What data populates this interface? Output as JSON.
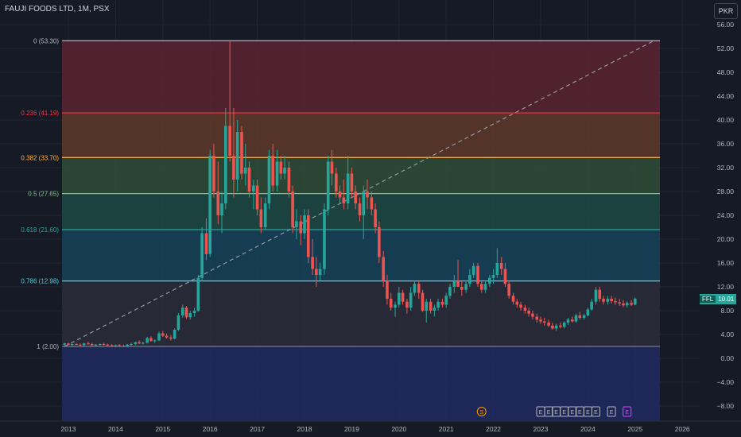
{
  "header": {
    "title": "FAUJI FOODS LTD, 1M, PSX"
  },
  "currency_button": "PKR",
  "price_tag": {
    "symbol": "FFL",
    "value": "10.01",
    "color": "#26a69a"
  },
  "colors": {
    "background": "#161a25",
    "up": "#26a69a",
    "down": "#ef5350",
    "grid": "#232632",
    "axis_text": "#b2b5be"
  },
  "chart_data": {
    "type": "candlestick",
    "title": "FAUJI FOODS LTD, 1M, PSX",
    "x_ticks": [
      "2013",
      "2014",
      "2015",
      "2016",
      "2017",
      "2018",
      "2019",
      "2020",
      "2021",
      "2022",
      "2023",
      "2024",
      "2025",
      "2026"
    ],
    "x_range": [
      2012.85,
      2026.4
    ],
    "y_ticks": [
      "56.00",
      "52.00",
      "48.00",
      "44.00",
      "40.00",
      "36.00",
      "32.00",
      "28.00",
      "24.00",
      "20.00",
      "16.00",
      "12.00",
      "8.00",
      "4.00",
      "0.00",
      "−4.00",
      "−8.00"
    ],
    "ylim": [
      -10.5,
      56.5
    ],
    "fib_levels": [
      {
        "label": "0 (53.30)",
        "value": 53.3,
        "line": "#b2b5be",
        "fill": "#5b2532",
        "text": "#b2b5be"
      },
      {
        "label": "0.236 (41.19)",
        "value": 41.19,
        "line": "#f23645",
        "fill": "#5f3a2a",
        "text": "#f23645"
      },
      {
        "label": "0.382 (33.70)",
        "value": 33.7,
        "line": "#ffb74d",
        "fill": "#2f4d38",
        "text": "#ffb74d"
      },
      {
        "label": "0.5 (27.65)",
        "value": 27.65,
        "line": "#81c784",
        "fill": "#1d4a45",
        "text": "#81c784"
      },
      {
        "label": "0.618 (21.60)",
        "value": 21.6,
        "line": "#26a69a",
        "fill": "#16435a",
        "text": "#26a69a"
      },
      {
        "label": "0.786 (12.98)",
        "value": 12.98,
        "line": "#4dd0e1",
        "fill": "#2a2e3a",
        "text": "#4dd0e1"
      },
      {
        "label": "1 (2.00)",
        "value": 2.0,
        "line": "#787b86",
        "fill": "#1e2b63",
        "text": "#b2b5be"
      }
    ],
    "trend_line": {
      "from": [
        2012.92,
        2.0
      ],
      "to": [
        2025.4,
        53.3
      ]
    },
    "candles": [
      [
        2012.92,
        2.3,
        2.6,
        2.1,
        2.5
      ],
      [
        2013.0,
        2.5,
        2.6,
        2.2,
        2.3
      ],
      [
        2013.08,
        2.3,
        2.5,
        2.1,
        2.4
      ],
      [
        2013.17,
        2.4,
        2.6,
        2.2,
        2.3
      ],
      [
        2013.25,
        2.3,
        2.5,
        2.1,
        2.2
      ],
      [
        2013.33,
        2.2,
        2.6,
        2.0,
        2.5
      ],
      [
        2013.42,
        2.5,
        2.8,
        2.3,
        2.4
      ],
      [
        2013.5,
        2.4,
        2.6,
        2.1,
        2.2
      ],
      [
        2013.58,
        2.2,
        2.4,
        2.0,
        2.3
      ],
      [
        2013.67,
        2.3,
        2.5,
        2.1,
        2.4
      ],
      [
        2013.75,
        2.4,
        2.6,
        2.2,
        2.3
      ],
      [
        2013.83,
        2.3,
        2.5,
        2.1,
        2.2
      ],
      [
        2013.92,
        2.2,
        2.4,
        2.0,
        2.1
      ],
      [
        2014.0,
        2.1,
        2.3,
        1.9,
        2.2
      ],
      [
        2014.08,
        2.2,
        2.4,
        2.0,
        2.1
      ],
      [
        2014.17,
        2.1,
        2.3,
        1.9,
        2.0
      ],
      [
        2014.25,
        2.0,
        2.4,
        1.9,
        2.3
      ],
      [
        2014.33,
        2.3,
        2.6,
        2.1,
        2.4
      ],
      [
        2014.42,
        2.4,
        2.8,
        2.2,
        2.7
      ],
      [
        2014.5,
        2.7,
        3.0,
        2.4,
        2.5
      ],
      [
        2014.58,
        2.5,
        2.8,
        2.3,
        2.6
      ],
      [
        2014.67,
        2.6,
        3.6,
        2.5,
        3.4
      ],
      [
        2014.75,
        3.4,
        3.7,
        2.8,
        2.9
      ],
      [
        2014.83,
        2.9,
        3.2,
        2.6,
        3.0
      ],
      [
        2014.92,
        3.0,
        4.5,
        2.9,
        4.2
      ],
      [
        2015.0,
        4.2,
        4.6,
        3.6,
        3.8
      ],
      [
        2015.08,
        3.8,
        4.2,
        3.3,
        3.5
      ],
      [
        2015.17,
        3.5,
        3.9,
        3.0,
        3.3
      ],
      [
        2015.25,
        3.3,
        5.0,
        3.2,
        4.8
      ],
      [
        2015.33,
        4.8,
        7.6,
        4.6,
        7.2
      ],
      [
        2015.42,
        7.2,
        9.0,
        6.8,
        8.5
      ],
      [
        2015.5,
        8.5,
        8.8,
        6.6,
        6.9
      ],
      [
        2015.58,
        6.9,
        8.0,
        6.5,
        7.6
      ],
      [
        2015.67,
        7.6,
        8.5,
        7.0,
        8.0
      ],
      [
        2015.75,
        8.0,
        14.0,
        7.8,
        13.5
      ],
      [
        2015.83,
        13.5,
        22.0,
        13.0,
        21.0
      ],
      [
        2015.92,
        21.0,
        23.5,
        16.5,
        17.5
      ],
      [
        2016.0,
        17.5,
        35.0,
        17.0,
        34.0
      ],
      [
        2016.08,
        34.0,
        36.0,
        27.0,
        28.0
      ],
      [
        2016.17,
        28.0,
        33.0,
        22.5,
        24.0
      ],
      [
        2016.25,
        24.0,
        28.0,
        21.0,
        26.0
      ],
      [
        2016.33,
        26.0,
        42.0,
        25.0,
        39.0
      ],
      [
        2016.42,
        39.0,
        53.3,
        33.0,
        34.0
      ],
      [
        2016.5,
        34.0,
        42.0,
        27.0,
        30.0
      ],
      [
        2016.58,
        30.0,
        40.0,
        28.0,
        38.0
      ],
      [
        2016.67,
        38.0,
        39.0,
        30.0,
        31.0
      ],
      [
        2016.75,
        31.0,
        36.0,
        29.0,
        32.0
      ],
      [
        2016.83,
        32.0,
        33.0,
        27.0,
        28.0
      ],
      [
        2016.92,
        28.0,
        30.0,
        25.0,
        29.0
      ],
      [
        2017.0,
        29.0,
        30.0,
        24.0,
        25.0
      ],
      [
        2017.08,
        25.0,
        27.0,
        21.0,
        22.0
      ],
      [
        2017.17,
        22.0,
        27.0,
        21.5,
        26.0
      ],
      [
        2017.25,
        26.0,
        35.0,
        25.0,
        34.0
      ],
      [
        2017.33,
        34.0,
        36.0,
        28.0,
        29.0
      ],
      [
        2017.42,
        29.0,
        35.0,
        28.0,
        33.0
      ],
      [
        2017.5,
        33.0,
        34.0,
        30.0,
        31.0
      ],
      [
        2017.58,
        31.0,
        34.0,
        30.0,
        32.0
      ],
      [
        2017.67,
        32.0,
        33.0,
        27.0,
        28.0
      ],
      [
        2017.75,
        28.0,
        29.0,
        21.0,
        22.0
      ],
      [
        2017.83,
        22.0,
        25.0,
        20.0,
        23.0
      ],
      [
        2017.92,
        23.0,
        24.0,
        19.0,
        21.0
      ],
      [
        2018.0,
        21.0,
        25.0,
        20.0,
        24.0
      ],
      [
        2018.08,
        24.0,
        25.0,
        16.0,
        17.0
      ],
      [
        2018.17,
        17.0,
        20.0,
        14.0,
        15.0
      ],
      [
        2018.25,
        15.0,
        17.0,
        12.0,
        14.0
      ],
      [
        2018.33,
        14.0,
        16.0,
        13.0,
        15.0
      ],
      [
        2018.42,
        15.0,
        26.0,
        14.0,
        25.0
      ],
      [
        2018.5,
        25.0,
        34.0,
        24.0,
        33.0
      ],
      [
        2018.58,
        33.0,
        35.0,
        29.0,
        31.0
      ],
      [
        2018.67,
        31.0,
        32.0,
        27.0,
        28.0
      ],
      [
        2018.75,
        28.0,
        29.0,
        26.0,
        27.0
      ],
      [
        2018.83,
        27.0,
        30.0,
        25.0,
        26.0
      ],
      [
        2018.92,
        26.0,
        34.0,
        25.0,
        31.0
      ],
      [
        2019.0,
        31.0,
        32.0,
        27.0,
        28.0
      ],
      [
        2019.08,
        28.0,
        29.0,
        25.0,
        26.0
      ],
      [
        2019.17,
        26.0,
        27.0,
        23.0,
        24.0
      ],
      [
        2019.25,
        24.0,
        29.0,
        20.0,
        28.0
      ],
      [
        2019.33,
        28.0,
        30.0,
        25.0,
        27.0
      ],
      [
        2019.42,
        27.0,
        28.0,
        24.0,
        25.0
      ],
      [
        2019.5,
        25.0,
        26.0,
        21.0,
        22.0
      ],
      [
        2019.58,
        22.0,
        23.0,
        16.0,
        17.0
      ],
      [
        2019.67,
        17.0,
        18.0,
        12.0,
        13.0
      ],
      [
        2019.75,
        13.0,
        14.0,
        9.0,
        10.0
      ],
      [
        2019.83,
        10.0,
        11.0,
        8.0,
        8.5
      ],
      [
        2019.92,
        8.5,
        9.5,
        7.0,
        9.0
      ],
      [
        2020.0,
        9.0,
        12.0,
        8.5,
        11.0
      ],
      [
        2020.08,
        11.0,
        11.5,
        9.0,
        9.5
      ],
      [
        2020.17,
        9.5,
        10.0,
        7.5,
        8.5
      ],
      [
        2020.25,
        8.5,
        12.0,
        8.0,
        11.0
      ],
      [
        2020.33,
        11.0,
        13.0,
        10.5,
        12.5
      ],
      [
        2020.42,
        12.5,
        13.0,
        10.0,
        11.0
      ],
      [
        2020.5,
        11.0,
        11.5,
        7.8,
        8.0
      ],
      [
        2020.58,
        8.0,
        10.0,
        6.0,
        9.5
      ],
      [
        2020.67,
        9.5,
        10.0,
        7.5,
        8.0
      ],
      [
        2020.75,
        8.0,
        9.0,
        7.0,
        8.5
      ],
      [
        2020.83,
        8.5,
        10.0,
        8.0,
        9.5
      ],
      [
        2020.92,
        9.5,
        10.0,
        8.5,
        9.0
      ],
      [
        2021.0,
        9.0,
        11.0,
        8.5,
        10.5
      ],
      [
        2021.08,
        10.5,
        12.5,
        10.0,
        12.0
      ],
      [
        2021.17,
        12.0,
        14.0,
        11.0,
        13.0
      ],
      [
        2021.25,
        13.0,
        16.5,
        12.5,
        12.0
      ],
      [
        2021.33,
        12.0,
        13.0,
        10.5,
        11.5
      ],
      [
        2021.42,
        11.5,
        13.0,
        11.0,
        12.5
      ],
      [
        2021.5,
        12.5,
        15.0,
        12.0,
        14.0
      ],
      [
        2021.58,
        14.0,
        16.0,
        13.5,
        15.5
      ],
      [
        2021.67,
        15.5,
        16.0,
        12.0,
        12.5
      ],
      [
        2021.75,
        12.5,
        13.0,
        11.0,
        11.5
      ],
      [
        2021.83,
        11.5,
        13.0,
        11.0,
        12.5
      ],
      [
        2021.92,
        12.5,
        14.0,
        12.0,
        13.5
      ],
      [
        2022.0,
        13.5,
        15.0,
        12.5,
        14.0
      ],
      [
        2022.08,
        14.0,
        18.5,
        13.5,
        16.0
      ],
      [
        2022.17,
        16.0,
        17.0,
        14.0,
        15.0
      ],
      [
        2022.25,
        15.0,
        16.0,
        12.0,
        12.5
      ],
      [
        2022.33,
        12.5,
        13.0,
        10.0,
        10.5
      ],
      [
        2022.42,
        10.5,
        11.0,
        9.0,
        9.5
      ],
      [
        2022.5,
        9.5,
        10.0,
        8.5,
        9.0
      ],
      [
        2022.58,
        9.0,
        9.5,
        8.0,
        8.5
      ],
      [
        2022.67,
        8.5,
        9.0,
        7.5,
        8.0
      ],
      [
        2022.75,
        8.0,
        8.5,
        7.0,
        7.5
      ],
      [
        2022.83,
        7.5,
        8.0,
        6.5,
        7.0
      ],
      [
        2022.92,
        7.0,
        7.5,
        6.0,
        6.5
      ],
      [
        2023.0,
        6.5,
        7.0,
        5.8,
        6.2
      ],
      [
        2023.08,
        6.2,
        6.8,
        5.5,
        6.0
      ],
      [
        2023.17,
        6.0,
        6.5,
        5.2,
        5.5
      ],
      [
        2023.25,
        5.5,
        6.0,
        4.8,
        5.0
      ],
      [
        2023.33,
        5.0,
        5.8,
        4.6,
        5.5
      ],
      [
        2023.42,
        5.5,
        6.0,
        5.0,
        5.3
      ],
      [
        2023.5,
        5.3,
        6.2,
        5.0,
        6.0
      ],
      [
        2023.58,
        6.0,
        6.8,
        5.6,
        6.5
      ],
      [
        2023.67,
        6.5,
        7.0,
        6.0,
        6.2
      ],
      [
        2023.75,
        6.2,
        7.5,
        6.0,
        7.2
      ],
      [
        2023.83,
        7.2,
        7.8,
        6.5,
        6.8
      ],
      [
        2023.92,
        6.8,
        7.5,
        6.5,
        7.2
      ],
      [
        2024.0,
        7.2,
        8.5,
        7.0,
        8.2
      ],
      [
        2024.08,
        8.2,
        10.0,
        8.0,
        9.5
      ],
      [
        2024.17,
        9.5,
        12.0,
        9.0,
        11.5
      ],
      [
        2024.25,
        11.5,
        12.0,
        9.5,
        10.0
      ],
      [
        2024.33,
        10.0,
        10.5,
        9.0,
        9.5
      ],
      [
        2024.42,
        9.5,
        10.5,
        9.0,
        10.0
      ],
      [
        2024.5,
        10.0,
        10.5,
        9.2,
        9.6
      ],
      [
        2024.58,
        9.6,
        10.2,
        9.0,
        9.4
      ],
      [
        2024.67,
        9.4,
        10.0,
        8.8,
        9.2
      ],
      [
        2024.75,
        9.2,
        9.8,
        8.6,
        8.9
      ],
      [
        2024.83,
        8.9,
        9.6,
        8.5,
        9.3
      ],
      [
        2024.92,
        9.3,
        9.8,
        8.8,
        9.0
      ],
      [
        2025.0,
        9.0,
        10.2,
        8.9,
        10.01
      ]
    ],
    "events": [
      {
        "x": 2021.75,
        "label": "S",
        "color": "#ff9800"
      },
      {
        "x": 2023.0,
        "label": "E",
        "color": "#b2b5be"
      },
      {
        "x": 2023.17,
        "label": "E",
        "color": "#b2b5be"
      },
      {
        "x": 2023.33,
        "label": "E",
        "color": "#b2b5be"
      },
      {
        "x": 2023.5,
        "label": "E",
        "color": "#b2b5be"
      },
      {
        "x": 2023.67,
        "label": "E",
        "color": "#b2b5be"
      },
      {
        "x": 2023.83,
        "label": "E",
        "color": "#b2b5be"
      },
      {
        "x": 2024.0,
        "label": "E",
        "color": "#b2b5be"
      },
      {
        "x": 2024.17,
        "label": "E",
        "color": "#b2b5be"
      },
      {
        "x": 2024.5,
        "label": "E",
        "color": "#b2b5be"
      },
      {
        "x": 2024.83,
        "label": "E",
        "color": "#e040fb"
      }
    ]
  }
}
